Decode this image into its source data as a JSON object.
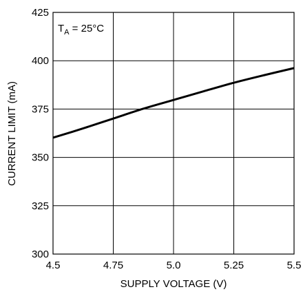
{
  "chart_data": {
    "type": "line",
    "xlabel": "SUPPLY VOLTAGE (V)",
    "ylabel": "CURRENT LIMIT (mA)",
    "xlim": [
      4.5,
      5.5
    ],
    "ylim": [
      300,
      425
    ],
    "x_ticks": [
      4.5,
      4.75,
      5.0,
      5.25,
      5.5
    ],
    "x_tick_labels": [
      "4.5",
      "4.75",
      "5.0",
      "5.25",
      "5.5"
    ],
    "y_ticks": [
      300,
      325,
      350,
      375,
      400,
      425
    ],
    "y_tick_labels": [
      "300",
      "325",
      "350",
      "375",
      "400",
      "425"
    ],
    "grid": true,
    "annotation": {
      "main": "T",
      "sub": "A",
      "rest": " = 25°C"
    },
    "series": [
      {
        "x": [
          4.5,
          4.625,
          4.75,
          4.875,
          5.0,
          5.125,
          5.25,
          5.375,
          5.5
        ],
        "values": [
          360.2,
          365.0,
          370.1,
          375.2,
          379.7,
          384.2,
          388.6,
          392.5,
          396.2
        ]
      }
    ]
  }
}
